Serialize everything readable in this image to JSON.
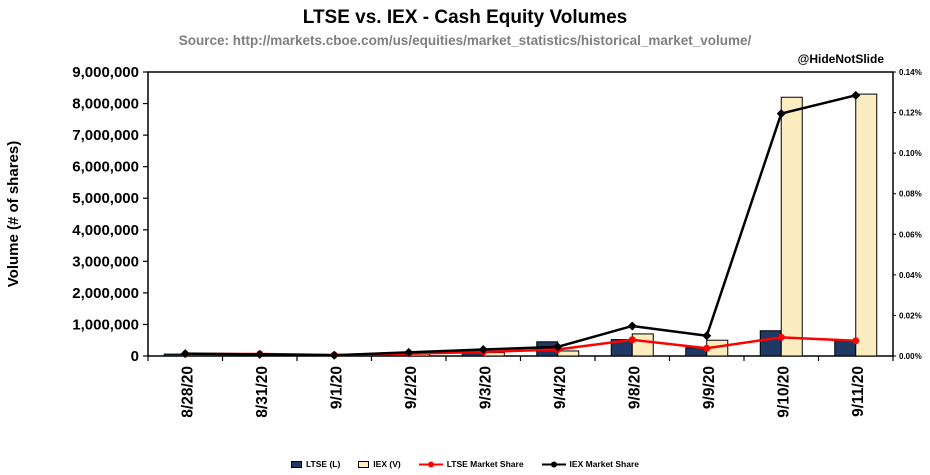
{
  "header": {
    "title": "LTSE vs. IEX - Cash Equity Volumes",
    "subtitle": "Source: http://markets.cboe.com/us/equities/market_statistics/historical_market_volume/",
    "watermark": "@HideNotSlide"
  },
  "chart_data": {
    "type": "bar",
    "subtype": "combo-clustered-bar-with-lines",
    "title": "LTSE vs. IEX - Cash Equity Volumes",
    "categories": [
      "8/28/20",
      "8/31/20",
      "9/1/20",
      "9/2/20",
      "9/3/20",
      "9/4/20",
      "9/8/20",
      "9/9/20",
      "9/10/20",
      "9/11/20"
    ],
    "bar_series": [
      {
        "name": "LTSE (L)",
        "color": "#1F3864",
        "axis": "left",
        "values": [
          60000,
          50000,
          30000,
          70000,
          130000,
          450000,
          520000,
          260000,
          800000,
          470000
        ]
      },
      {
        "name": "IEX (V)",
        "color": "#FBEDC0",
        "axis": "left",
        "values": [
          40000,
          30000,
          25000,
          60000,
          110000,
          160000,
          700000,
          500000,
          8200000,
          8300000
        ]
      }
    ],
    "line_series": [
      {
        "name": "LTSE Market Share",
        "color": "#FF0000",
        "axis": "right",
        "marker": "circle",
        "unit": "percent",
        "values": [
          0.001,
          0.001,
          0.0005,
          0.0012,
          0.002,
          0.0032,
          0.008,
          0.0038,
          0.0092,
          0.0075
        ]
      },
      {
        "name": "IEX Market Share",
        "color": "#000000",
        "axis": "right",
        "marker": "diamond",
        "unit": "percent",
        "values": [
          0.0012,
          0.0008,
          0.0004,
          0.0018,
          0.0032,
          0.0045,
          0.0148,
          0.01,
          0.1195,
          0.1285
        ]
      }
    ],
    "left_axis": {
      "label": "Volume (# of shares)",
      "min": 0,
      "max": 9000000,
      "step": 1000000,
      "tick_format": "#,##0"
    },
    "right_axis": {
      "label": "",
      "min": 0,
      "max": 0.14,
      "step": 0.02,
      "tick_format": "0.00%"
    },
    "grid": false,
    "legend_position": "bottom"
  }
}
